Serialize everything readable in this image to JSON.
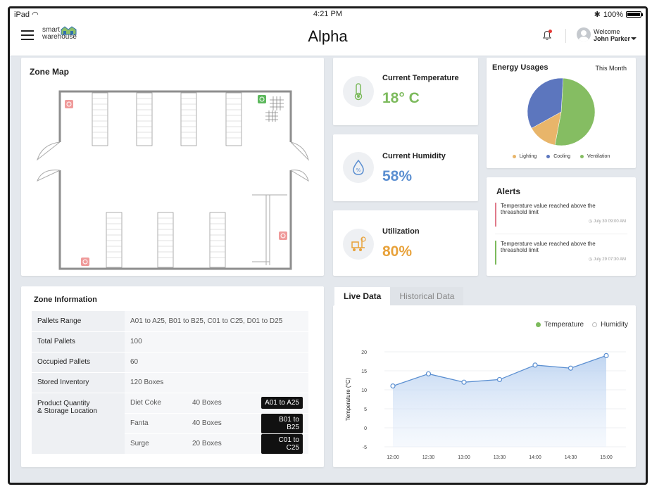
{
  "status": {
    "device": "iPad",
    "time": "4:21 PM",
    "battery": "100%"
  },
  "header": {
    "logo_top": "smart",
    "logo_bottom": "warehouse",
    "title": "Alpha",
    "welcome": "Welcome",
    "user_name": "John Parker"
  },
  "zone_map": {
    "title": "Zone Map"
  },
  "metrics": [
    {
      "label": "Current Temperature",
      "value": "18° C",
      "color": "#7cba5c",
      "icon": "thermometer-icon"
    },
    {
      "label": "Current Humidity",
      "value": "58%",
      "color": "#5b8fd1",
      "icon": "water-drop-icon"
    },
    {
      "label": "Utilization",
      "value": "80%",
      "color": "#e8a23b",
      "icon": "forklift-icon"
    }
  ],
  "energy": {
    "title": "Energy Usages",
    "period": "This Month",
    "slices": [
      {
        "name": "Lighting",
        "value": 14,
        "color": "#e8b56a"
      },
      {
        "name": "Cooling",
        "value": 34,
        "color": "#5c76be"
      },
      {
        "name": "Ventilation",
        "value": 52,
        "color": "#85bd62"
      }
    ]
  },
  "alerts": {
    "title": "Alerts",
    "items": [
      {
        "text_1": "Temperature value reached above the",
        "text_2": "threashold limit",
        "time": "July 30 09:00 AM",
        "color": "#e07a8a"
      },
      {
        "text_1": "Temperature value reached above the",
        "text_2": "threashold limit",
        "time": "July 29 07:30 AM",
        "color": "#7cba5c"
      }
    ]
  },
  "zone_info": {
    "title": "Zone Information",
    "rows": [
      {
        "key": "Pallets Range",
        "value": "A01 to A25, B01 to B25, C01 to C25, D01 to D25"
      },
      {
        "key": "Total Pallets",
        "value": "100"
      },
      {
        "key": "Occupied Pallets",
        "value": "60"
      },
      {
        "key": "Stored Inventory",
        "value": "120 Boxes"
      }
    ],
    "product_key_1": "Product Quantity",
    "product_key_2": "& Storage Location",
    "products": [
      {
        "name": "Diet Coke",
        "qty": "40 Boxes",
        "loc": "A01 to A25"
      },
      {
        "name": "Fanta",
        "qty": "40 Boxes",
        "loc": "B01 to B25"
      },
      {
        "name": "Surge",
        "qty": "20 Boxes",
        "loc": "C01 to C25"
      }
    ]
  },
  "live": {
    "tab_live": "Live Data",
    "tab_hist": "Historical Data",
    "legend_temp": "Temperature",
    "legend_hum": "Humidity",
    "temp_color": "#7cba5c",
    "line_color": "#5b8fd1"
  },
  "chart_data": {
    "type": "area",
    "x": [
      "12:00",
      "12:30",
      "13:00",
      "13:30",
      "14:00",
      "14:30",
      "15:00"
    ],
    "series": [
      {
        "name": "Temperature",
        "values": [
          11,
          14.2,
          12,
          12.7,
          16.5,
          15.7,
          19
        ]
      }
    ],
    "ylabel": "Temperature (°C)",
    "ylim": [
      -5,
      20
    ],
    "yticks": [
      20,
      15,
      10,
      5,
      0,
      -5
    ]
  }
}
